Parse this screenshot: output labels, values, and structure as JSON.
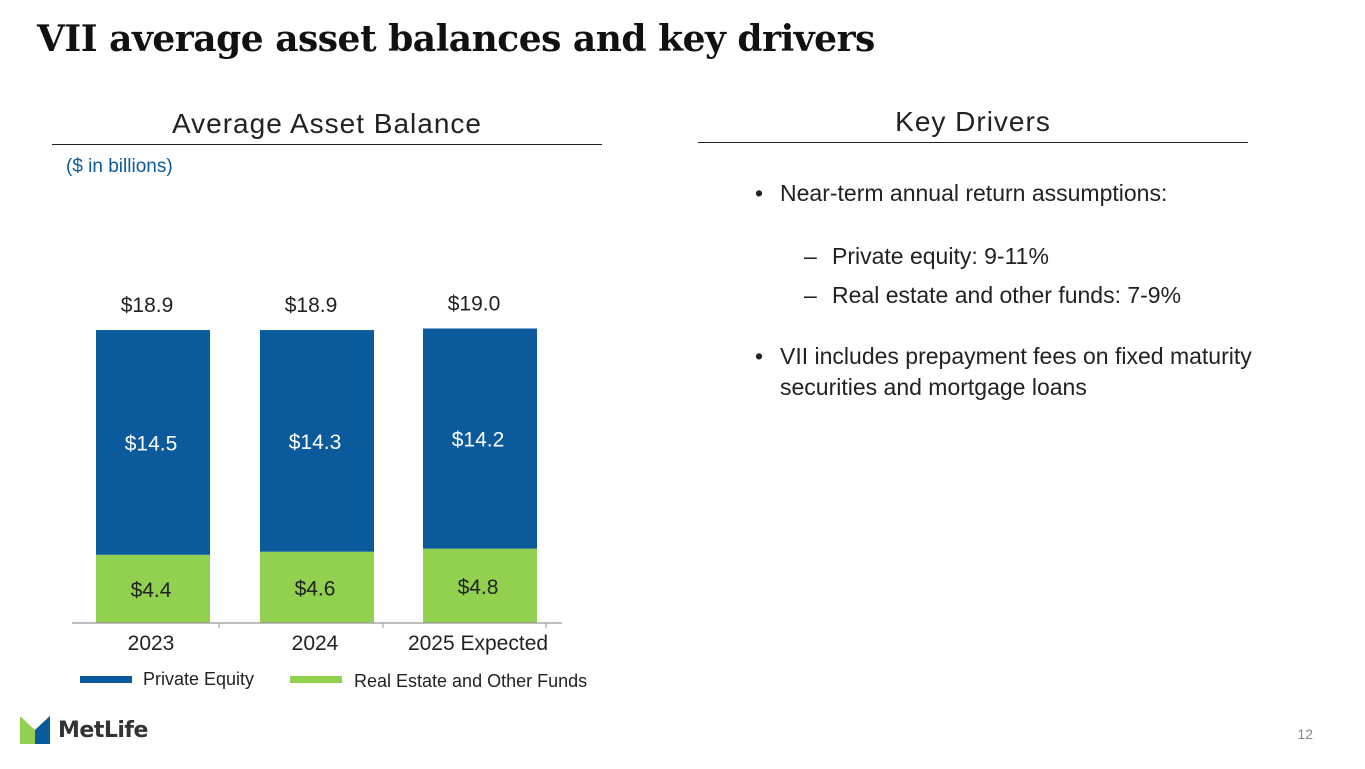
{
  "page": {
    "title": "VII average asset balances and key drivers",
    "left_heading": "Average Asset Balance",
    "units": "($ in billions)",
    "right_heading": "Key Drivers",
    "page_number": "12",
    "logo_text": "MetLife"
  },
  "drivers": {
    "bullet1": "Near-term annual return assumptions:",
    "sub1": "Private equity: 9-11%",
    "sub2": "Real estate and other funds: 7-9%",
    "bullet2": "VII includes prepayment fees on fixed maturity securities and mortgage loans",
    "bullet_symbol": "•",
    "dash_symbol": "–"
  },
  "chart_data": {
    "type": "bar",
    "stacked": true,
    "categories": [
      "2023",
      "2024",
      "2025 Expected"
    ],
    "series": [
      {
        "name": "Real Estate and Other Funds",
        "values": [
          4.4,
          4.6,
          4.8
        ],
        "labels": [
          "$4.4",
          "$4.6",
          "$4.8"
        ],
        "color": "#92d050",
        "label_color": "#222222"
      },
      {
        "name": "Private Equity",
        "values": [
          14.5,
          14.3,
          14.2
        ],
        "labels": [
          "$14.5",
          "$14.3",
          "$14.2"
        ],
        "color": "#0b5a9c",
        "label_color": "#ffffff"
      }
    ],
    "totals": [
      18.9,
      18.9,
      19.0
    ],
    "total_labels": [
      "$18.9",
      "$18.9",
      "$19.0"
    ],
    "legend": {
      "position": "bottom",
      "order": [
        "Private Equity",
        "Real Estate and Other Funds"
      ]
    },
    "ylim": [
      0,
      20
    ],
    "grid": false,
    "title": "Average Asset Balance",
    "ylabel": "",
    "xlabel": ""
  }
}
